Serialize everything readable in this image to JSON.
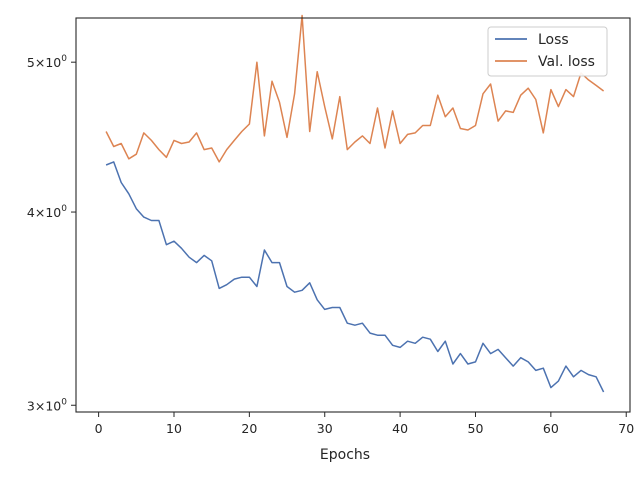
{
  "chart_data": {
    "type": "line",
    "title": "",
    "xlabel": "Epochs",
    "ylabel": "",
    "yscale": "log",
    "xlim": [
      -3,
      70.5
    ],
    "ylim": [
      2.97,
      5.34
    ],
    "grid": false,
    "legend_position": "top-right",
    "x_ticks": [
      0,
      10,
      20,
      30,
      40,
      50,
      60,
      70
    ],
    "x_tick_labels": [
      "0",
      "10",
      "20",
      "30",
      "40",
      "50",
      "60",
      "70"
    ],
    "y_ticks": [
      3,
      4,
      5
    ],
    "y_tick_labels": [
      {
        "base": "3×10",
        "exp": "0"
      },
      {
        "base": "4×10",
        "exp": "0"
      },
      {
        "base": "5×10",
        "exp": "0"
      }
    ],
    "x": [
      1,
      2,
      3,
      4,
      5,
      6,
      7,
      8,
      9,
      10,
      11,
      12,
      13,
      14,
      15,
      16,
      17,
      18,
      19,
      20,
      21,
      22,
      23,
      24,
      25,
      26,
      27,
      28,
      29,
      30,
      31,
      32,
      33,
      34,
      35,
      36,
      37,
      38,
      39,
      40,
      41,
      42,
      43,
      44,
      45,
      46,
      47,
      48,
      49,
      50,
      51,
      52,
      53,
      54,
      55,
      56,
      57,
      58,
      59,
      60,
      61,
      62,
      63,
      64,
      65,
      66,
      67
    ],
    "series": [
      {
        "name": "Loss",
        "color": "#4c72b0",
        "values": [
          4.29,
          4.31,
          4.18,
          4.11,
          4.02,
          3.97,
          3.95,
          3.95,
          3.81,
          3.83,
          3.79,
          3.74,
          3.71,
          3.75,
          3.72,
          3.57,
          3.59,
          3.62,
          3.63,
          3.63,
          3.58,
          3.78,
          3.71,
          3.71,
          3.58,
          3.55,
          3.56,
          3.6,
          3.51,
          3.46,
          3.47,
          3.47,
          3.39,
          3.38,
          3.39,
          3.34,
          3.33,
          3.33,
          3.28,
          3.27,
          3.3,
          3.29,
          3.32,
          3.31,
          3.25,
          3.3,
          3.19,
          3.24,
          3.19,
          3.2,
          3.29,
          3.24,
          3.26,
          3.22,
          3.18,
          3.22,
          3.2,
          3.16,
          3.17,
          3.08,
          3.11,
          3.18,
          3.13,
          3.16,
          3.14,
          3.13,
          3.06
        ]
      },
      {
        "name": "Val. loss",
        "color": "#dd8452",
        "values": [
          4.51,
          4.41,
          4.43,
          4.33,
          4.36,
          4.5,
          4.45,
          4.39,
          4.34,
          4.45,
          4.43,
          4.44,
          4.5,
          4.39,
          4.4,
          4.31,
          4.39,
          4.45,
          4.51,
          4.56,
          5.0,
          4.48,
          4.86,
          4.71,
          4.47,
          4.77,
          5.36,
          4.51,
          4.93,
          4.68,
          4.46,
          4.75,
          4.39,
          4.44,
          4.48,
          4.43,
          4.67,
          4.4,
          4.65,
          4.43,
          4.49,
          4.5,
          4.55,
          4.55,
          4.76,
          4.61,
          4.67,
          4.53,
          4.52,
          4.55,
          4.77,
          4.84,
          4.58,
          4.65,
          4.64,
          4.76,
          4.81,
          4.73,
          4.5,
          4.8,
          4.68,
          4.8,
          4.75,
          4.92,
          4.87,
          4.83,
          4.79
        ]
      }
    ]
  }
}
